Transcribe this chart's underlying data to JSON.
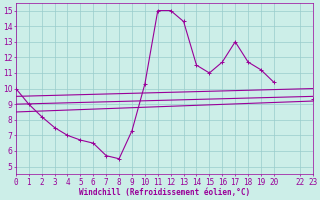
{
  "line1_x": [
    0,
    1,
    2,
    3,
    4,
    5,
    6,
    7,
    8,
    9,
    10,
    11,
    12,
    13,
    14,
    15,
    16,
    17,
    18,
    19,
    20,
    22,
    23
  ],
  "line1_y": [
    10.0,
    9.0,
    8.2,
    7.5,
    7.0,
    6.7,
    6.5,
    5.7,
    5.5,
    7.3,
    10.3,
    15.0,
    15.0,
    14.3,
    11.5,
    11.0,
    11.7,
    13.0,
    11.7,
    11.2,
    10.4,
    null,
    9.3
  ],
  "line2_x": [
    0,
    23
  ],
  "line2_y": [
    9.5,
    10.0
  ],
  "line3_x": [
    0,
    23
  ],
  "line3_y": [
    9.0,
    9.5
  ],
  "line4_x": [
    0,
    23
  ],
  "line4_y": [
    8.5,
    9.2
  ],
  "bg_color": "#cceee8",
  "grid_color": "#99cccc",
  "line_color": "#990099",
  "marker": "+",
  "markersize": 3,
  "linewidth": 0.8,
  "xlim": [
    0,
    23
  ],
  "ylim": [
    4.5,
    15.5
  ],
  "yticks": [
    5,
    6,
    7,
    8,
    9,
    10,
    11,
    12,
    13,
    14,
    15
  ],
  "xlabel": "Windchill (Refroidissement éolien,°C)",
  "label_fontsize": 5.5,
  "tick_fontsize": 5.5
}
